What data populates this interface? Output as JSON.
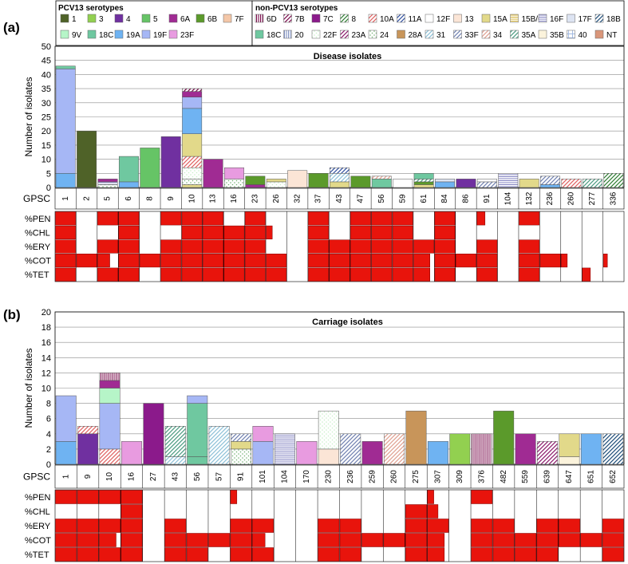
{
  "legend": {
    "pcv13_title": "PCV13 serotypes",
    "non_pcv13_title": "non-PCV13 serotypes",
    "pcv13": [
      {
        "label": "1",
        "color": "#4f6228",
        "pattern": "solid"
      },
      {
        "label": "3",
        "color": "#92d050",
        "pattern": "solid"
      },
      {
        "label": "4",
        "color": "#7030a0",
        "pattern": "solid"
      },
      {
        "label": "5",
        "color": "#66c466",
        "pattern": "solid"
      },
      {
        "label": "6A",
        "color": "#a02b93",
        "pattern": "solid"
      },
      {
        "label": "6B",
        "color": "#5b9a2b",
        "pattern": "solid"
      },
      {
        "label": "7F",
        "color": "#f4c7a8",
        "pattern": "solid"
      },
      {
        "label": "9V",
        "color": "#b6f5c8",
        "pattern": "solid"
      },
      {
        "label": "18C",
        "color": "#6fc8a0",
        "pattern": "solid"
      },
      {
        "label": "19A",
        "color": "#6fb3f2",
        "pattern": "solid"
      },
      {
        "label": "19F",
        "color": "#a6b7f5",
        "pattern": "solid"
      },
      {
        "label": "23F",
        "color": "#e89be0",
        "pattern": "solid"
      }
    ],
    "non_pcv13": [
      {
        "label": "6D",
        "color": "#7b0a4c",
        "pattern": "vlines"
      },
      {
        "label": "7B",
        "color": "#7b0a4c",
        "pattern": "diag"
      },
      {
        "label": "7C",
        "color": "#8b1a8b",
        "pattern": "solid"
      },
      {
        "label": "8",
        "color": "#2e7d32",
        "pattern": "diag"
      },
      {
        "label": "10A",
        "color": "#e06060",
        "pattern": "diag"
      },
      {
        "label": "11A",
        "color": "#3050a0",
        "pattern": "diag"
      },
      {
        "label": "12F",
        "color": "#ffffff",
        "pattern": "solid"
      },
      {
        "label": "13",
        "color": "#fbe5d6",
        "pattern": "solid"
      },
      {
        "label": "15A",
        "color": "#e2d98a",
        "pattern": "solid"
      },
      {
        "label": "15B/C",
        "color": "#d4b030",
        "pattern": "hlines"
      },
      {
        "label": "16F",
        "color": "#8080c0",
        "pattern": "hlines"
      },
      {
        "label": "17F",
        "color": "#dde4f2",
        "pattern": "solid"
      },
      {
        "label": "18B",
        "color": "#1f4e79",
        "pattern": "diag"
      },
      {
        "label": "18C",
        "color": "#1e5e3e",
        "pattern": "diag"
      },
      {
        "label": "20",
        "color": "#8090c0",
        "pattern": "vlines"
      },
      {
        "label": "22F",
        "color": "#c8f0c8",
        "pattern": "dots"
      },
      {
        "label": "23A",
        "color": "#8b1a6b",
        "pattern": "diag"
      },
      {
        "label": "24",
        "color": "#70b070",
        "pattern": "dots"
      },
      {
        "label": "28A",
        "color": "#c8955a",
        "pattern": "solid"
      },
      {
        "label": "31",
        "color": "#8cc0d8",
        "pattern": "diag"
      },
      {
        "label": "33F",
        "color": "#7080b0",
        "pattern": "diag"
      },
      {
        "label": "34",
        "color": "#e0a090",
        "pattern": "diag"
      },
      {
        "label": "35A",
        "color": "#4a9a80",
        "pattern": "diag"
      },
      {
        "label": "35B",
        "color": "#fbf3dc",
        "pattern": "solid"
      },
      {
        "label": "40",
        "color": "#9fb8e0",
        "pattern": "grid"
      },
      {
        "label": "NT",
        "color": "#d9967a",
        "pattern": "solid"
      }
    ]
  },
  "panels": [
    {
      "panel_label": "(a)",
      "title": "Disease isolates",
      "ylabel": "Number of isolates",
      "ylim": [
        0,
        50
      ],
      "yticks": [
        0,
        5,
        10,
        15,
        20,
        25,
        30,
        35,
        40,
        45,
        50
      ],
      "xlabel": "GPSC",
      "res_labels": [
        "%PEN",
        "%CHL",
        "%ERY",
        "%COT",
        "%TET"
      ]
    },
    {
      "panel_label": "(b)",
      "title": "Carriage isolates",
      "ylabel": "Number of isolates",
      "ylim": [
        0,
        20
      ],
      "yticks": [
        0,
        2,
        4,
        6,
        8,
        10,
        12,
        14,
        16,
        18,
        20
      ],
      "xlabel": "GPSC",
      "res_labels": [
        "%PEN",
        "%CHL",
        "%ERY",
        "%COT",
        "%TET"
      ]
    }
  ],
  "chart_data": [
    {
      "type": "bar",
      "stacked": true,
      "title": "Disease isolates",
      "xlabel": "GPSC",
      "ylabel": "Number of isolates",
      "ylim": [
        0,
        50
      ],
      "grid": true,
      "categories": [
        "1",
        "2",
        "5",
        "6",
        "8",
        "9",
        "10",
        "13",
        "16",
        "23",
        "26",
        "32",
        "37",
        "43",
        "47",
        "56",
        "59",
        "61",
        "84",
        "86",
        "91",
        "104",
        "132",
        "236",
        "260",
        "277",
        "336"
      ],
      "stacks": [
        [
          [
            "19A",
            5
          ],
          [
            "19F",
            37
          ],
          [
            "18C",
            1
          ]
        ],
        [
          [
            "1",
            20
          ]
        ],
        [
          [
            "24",
            1
          ],
          [
            "16F",
            1
          ],
          [
            "6A",
            1
          ]
        ],
        [
          [
            "19A",
            2
          ],
          [
            "18C",
            9
          ]
        ],
        [
          [
            "5",
            14
          ]
        ],
        [
          [
            "4",
            18
          ]
        ],
        [
          [
            "15A",
            1
          ],
          [
            "24",
            2
          ],
          [
            "22F",
            4
          ],
          [
            "10A",
            4
          ],
          [
            "15A",
            8
          ],
          [
            "19A",
            9
          ],
          [
            "19F",
            4
          ],
          [
            "6A",
            2
          ],
          [
            "7B",
            1
          ]
        ],
        [
          [
            "6A",
            10
          ]
        ],
        [
          [
            "24",
            3
          ],
          [
            "23F",
            4
          ]
        ],
        [
          [
            "6A",
            1
          ],
          [
            "6B",
            3
          ]
        ],
        [
          [
            "22F",
            2
          ],
          [
            "15A",
            1
          ]
        ],
        [
          [
            "13",
            6
          ]
        ],
        [
          [
            "6B",
            5
          ]
        ],
        [
          [
            "15A",
            2
          ],
          [
            "31",
            3
          ],
          [
            "11A",
            2
          ]
        ],
        [
          [
            "6B",
            4
          ]
        ],
        [
          [
            "18C",
            3
          ],
          [
            "34",
            1
          ]
        ],
        [
          [
            "12F",
            3
          ]
        ],
        [
          [
            "15A",
            1
          ],
          [
            "6B",
            1
          ],
          [
            "35A",
            1
          ],
          [
            "18C",
            2
          ]
        ],
        [
          [
            "19A",
            2
          ],
          [
            "17F",
            1
          ]
        ],
        [
          [
            "4",
            3
          ]
        ],
        [
          [
            "33F",
            2
          ],
          [
            "12F",
            1
          ]
        ],
        [
          [
            "16F",
            5
          ]
        ],
        [
          [
            "15A",
            3
          ]
        ],
        [
          [
            "19A",
            1
          ],
          [
            "33F",
            3
          ]
        ],
        [
          [
            "10A",
            3
          ]
        ],
        [
          [
            "35A",
            3
          ]
        ],
        [
          [
            "8",
            5
          ]
        ]
      ],
      "resistance_series": [
        "%PEN",
        "%CHL",
        "%ERY",
        "%COT",
        "%TET"
      ],
      "resistance": [
        [
          1,
          1,
          1,
          1,
          1
        ],
        [
          0,
          0,
          0,
          1,
          0
        ],
        [
          1,
          0,
          1,
          0.6,
          1
        ],
        [
          1,
          1,
          1,
          1,
          1
        ],
        [
          0,
          0,
          0,
          1,
          0
        ],
        [
          1,
          0,
          1,
          1,
          1
        ],
        [
          1,
          1,
          1,
          1,
          1
        ],
        [
          1,
          1,
          1,
          1,
          1
        ],
        [
          0,
          1,
          1,
          1,
          1
        ],
        [
          1,
          1,
          1,
          1,
          1
        ],
        [
          0,
          0.3,
          0,
          1,
          1
        ],
        [
          0,
          0,
          0,
          0,
          0
        ],
        [
          1,
          1,
          1,
          1,
          1
        ],
        [
          0,
          0,
          1,
          1,
          1
        ],
        [
          1,
          1,
          1,
          1,
          1
        ],
        [
          1,
          1,
          1,
          1,
          1
        ],
        [
          1,
          1,
          1,
          1,
          1
        ],
        [
          0,
          0,
          1,
          0.8,
          0.8
        ],
        [
          1,
          1,
          1,
          1,
          1
        ],
        [
          0,
          0,
          0,
          1,
          0
        ],
        [
          0.4,
          0,
          1,
          1,
          1
        ],
        [
          0,
          0,
          0,
          0,
          0
        ],
        [
          1,
          0,
          1,
          1,
          1
        ],
        [
          0,
          0,
          0,
          1,
          0
        ],
        [
          0,
          0,
          0,
          0.3,
          0
        ],
        [
          0,
          0,
          0,
          0,
          0.4
        ],
        [
          0,
          0,
          0,
          0.2,
          0
        ]
      ]
    },
    {
      "type": "bar",
      "stacked": true,
      "title": "Carriage isolates",
      "xlabel": "GPSC",
      "ylabel": "Number of isolates",
      "ylim": [
        0,
        20
      ],
      "grid": true,
      "categories": [
        "1",
        "9",
        "10",
        "16",
        "27",
        "43",
        "56",
        "57",
        "91",
        "101",
        "104",
        "170",
        "230",
        "236",
        "259",
        "260",
        "275",
        "307",
        "309",
        "376",
        "482",
        "559",
        "639",
        "647",
        "651",
        "652"
      ],
      "stacks": [
        [
          [
            "19A",
            3
          ],
          [
            "19F",
            6
          ]
        ],
        [
          [
            "4",
            4
          ],
          [
            "10A",
            1
          ]
        ],
        [
          [
            "10A",
            2
          ],
          [
            "19F",
            6
          ],
          [
            "9V",
            2
          ],
          [
            "6A",
            1
          ],
          [
            "6D",
            1
          ]
        ],
        [
          [
            "23F",
            3
          ]
        ],
        [
          [
            "7C",
            8
          ]
        ],
        [
          [
            "31",
            1
          ],
          [
            "35A",
            4
          ]
        ],
        [
          [
            "18C",
            1
          ],
          [
            "18C",
            7
          ],
          [
            "19F",
            1
          ]
        ],
        [
          [
            "31",
            5
          ]
        ],
        [
          [
            "24",
            2
          ],
          [
            "15A",
            1
          ],
          [
            "33F",
            1
          ]
        ],
        [
          [
            "19F",
            3
          ],
          [
            "23F",
            2
          ]
        ],
        [
          [
            "16F",
            4
          ]
        ],
        [
          [
            "23F",
            3
          ]
        ],
        [
          [
            "13",
            2
          ],
          [
            "22F",
            5
          ]
        ],
        [
          [
            "33F",
            4
          ]
        ],
        [
          [
            "6A",
            3
          ]
        ],
        [
          [
            "34",
            4
          ]
        ],
        [
          [
            "28A",
            7
          ]
        ],
        [
          [
            "19A",
            3
          ]
        ],
        [
          [
            "3",
            4
          ]
        ],
        [
          [
            "6D",
            4
          ]
        ],
        [
          [
            "6B",
            7
          ]
        ],
        [
          [
            "6A",
            4
          ]
        ],
        [
          [
            "23A",
            3
          ]
        ],
        [
          [
            "35B",
            1
          ],
          [
            "15A",
            3
          ]
        ],
        [
          [
            "19A",
            4
          ]
        ],
        [
          [
            "18B",
            4
          ]
        ]
      ],
      "resistance_series": [
        "%PEN",
        "%CHL",
        "%ERY",
        "%COT",
        "%TET"
      ],
      "resistance": [
        [
          1,
          0,
          1,
          1,
          1
        ],
        [
          1,
          0,
          1,
          1,
          1
        ],
        [
          1,
          0,
          1,
          0.8,
          1
        ],
        [
          1,
          1,
          1,
          1,
          1
        ],
        [
          0,
          0,
          0,
          0,
          0
        ],
        [
          0,
          0,
          1,
          1,
          1
        ],
        [
          0,
          0,
          0,
          1,
          1
        ],
        [
          0,
          0,
          0,
          1,
          0
        ],
        [
          0.3,
          0,
          1,
          1,
          1
        ],
        [
          0,
          0,
          1,
          0.6,
          1
        ],
        [
          0,
          0,
          0,
          0,
          0
        ],
        [
          0,
          0,
          0,
          0,
          0
        ],
        [
          0,
          0,
          1,
          1,
          1
        ],
        [
          0,
          0,
          1,
          1,
          1
        ],
        [
          0,
          0,
          0,
          1,
          0
        ],
        [
          0,
          0,
          0,
          1,
          0
        ],
        [
          0,
          1,
          1,
          1,
          1
        ],
        [
          0.3,
          0.5,
          1,
          0.8,
          0.8
        ],
        [
          0,
          0,
          0,
          0,
          0
        ],
        [
          1,
          0,
          1,
          1,
          1
        ],
        [
          0,
          0,
          1,
          1,
          1
        ],
        [
          0,
          0,
          0,
          1,
          1
        ],
        [
          0,
          0,
          1,
          1,
          1
        ],
        [
          0,
          0,
          1,
          1,
          0
        ],
        [
          0,
          0,
          0,
          1,
          0
        ],
        [
          0,
          0,
          1,
          1,
          1
        ]
      ]
    }
  ]
}
